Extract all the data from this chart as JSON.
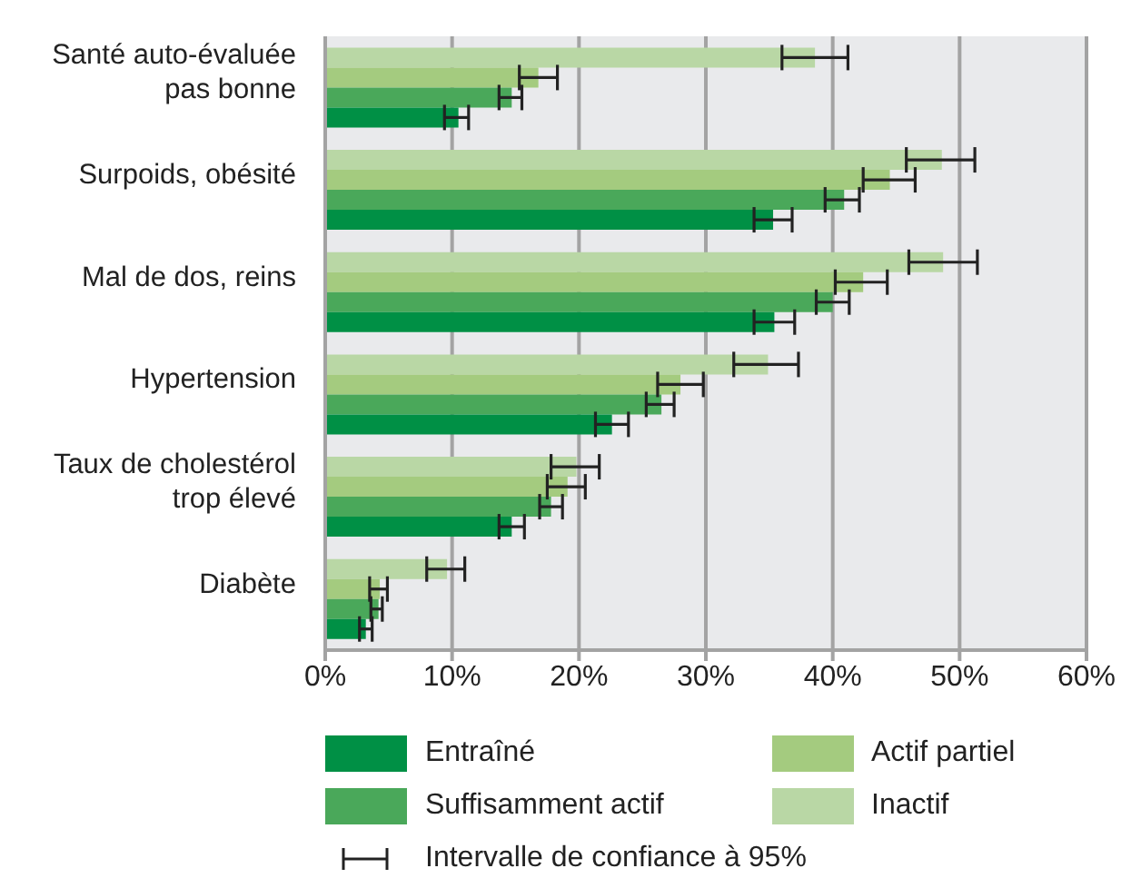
{
  "chart_data": {
    "type": "bar",
    "orientation": "horizontal",
    "categories": [
      "Santé auto-évaluée pas bonne",
      "Surpoids, obésité",
      "Mal de dos, reins",
      "Hypertension",
      "Taux de cholestérol trop élevé",
      "Diabète"
    ],
    "series": [
      {
        "name": "Entraîné",
        "color": "#009045",
        "values": [
          10.5,
          35.3,
          35.4,
          22.6,
          14.7,
          3.2
        ],
        "errors": [
          [
            9.4,
            11.3
          ],
          [
            33.8,
            36.8
          ],
          [
            33.8,
            37.0
          ],
          [
            21.3,
            23.9
          ],
          [
            13.7,
            15.7
          ],
          [
            2.7,
            3.7
          ]
        ]
      },
      {
        "name": "Suffisamment actif",
        "color": "#4aa85a",
        "values": [
          14.7,
          40.9,
          40.0,
          26.5,
          17.8,
          4.2
        ],
        "errors": [
          [
            13.7,
            15.5
          ],
          [
            39.4,
            42.1
          ],
          [
            38.7,
            41.3
          ],
          [
            25.3,
            27.5
          ],
          [
            16.9,
            18.7
          ],
          [
            3.6,
            4.5
          ]
        ]
      },
      {
        "name": "Actif partiel",
        "color": "#a4cb7f",
        "values": [
          16.8,
          44.5,
          42.4,
          28.0,
          19.1,
          4.3
        ],
        "errors": [
          [
            15.3,
            18.3
          ],
          [
            42.4,
            46.5
          ],
          [
            40.2,
            44.3
          ],
          [
            26.2,
            29.8
          ],
          [
            17.5,
            20.5
          ],
          [
            3.5,
            4.9
          ]
        ]
      },
      {
        "name": "Inactif",
        "color": "#b9d7a5",
        "values": [
          38.6,
          48.6,
          48.7,
          34.9,
          19.8,
          9.6
        ],
        "errors": [
          [
            36.0,
            41.2
          ],
          [
            45.8,
            51.2
          ],
          [
            46.0,
            51.4
          ],
          [
            32.2,
            37.3
          ],
          [
            17.8,
            21.6
          ],
          [
            8.0,
            11.0
          ]
        ]
      }
    ],
    "xlim": [
      0,
      60
    ],
    "xticks": [
      {
        "value": 0,
        "label": "0%"
      },
      {
        "value": 10,
        "label": "10%"
      },
      {
        "value": 20,
        "label": "20%"
      },
      {
        "value": 30,
        "label": "30%"
      },
      {
        "value": 40,
        "label": "40%"
      },
      {
        "value": 50,
        "label": "50%"
      },
      {
        "value": 60,
        "label": "60%"
      }
    ],
    "grid": "x",
    "legend": "bottom",
    "annotations": [
      "Intervalle de confiance à 95%"
    ]
  }
}
